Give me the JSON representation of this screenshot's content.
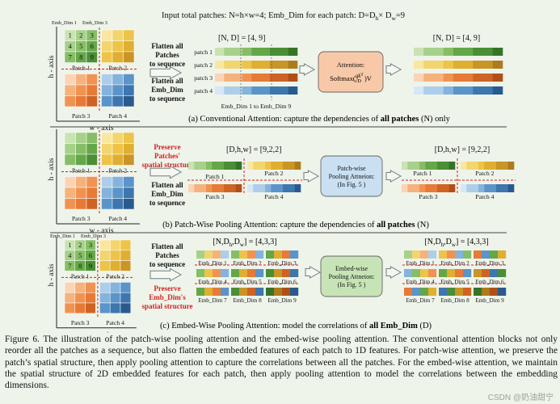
{
  "header": {
    "input_text": "Input total patches: N=h×w=4;   Emb_Dim for each patch: D=D",
    "h_sub": "h",
    "times": "× D",
    "w_sub": "w",
    "eq": "=9"
  },
  "labels": {
    "emb_dim_1": "Emb_Dim 1",
    "emb_dim_3": "Emb_Dim 3",
    "h_axis": "h - axis",
    "w_axis": "w - axis",
    "patch_1": "Patch 1",
    "patch_2": "Patch 2",
    "patch_3": "Patch 3",
    "patch_4": "Patch 4",
    "patch_grid_numbers": [
      "1",
      "2",
      "3",
      "4",
      "5",
      "6",
      "7",
      "8",
      "9"
    ]
  },
  "panel_a": {
    "flatten_patches": [
      "Flatten all",
      "Patches",
      "to sequence"
    ],
    "flatten_emb": [
      "Flatten all",
      "Emb_Dim",
      "to sequence"
    ],
    "shape_in": "[N, D] = [4, 9]",
    "shape_out": "[N, D] = [4, 9]",
    "row_labels": [
      "patch 1",
      "patch 2",
      "patch 3",
      "patch 4"
    ],
    "emb_range": "Emb_Dim 1  to  Emb_Dim 9",
    "attention_title": "Attention:",
    "attention_formula": "Softmax(",
    "attention_num": "qk",
    "attention_sup": "T",
    "attention_den": "√D",
    "attention_tail": ")V",
    "caption_prefix": "(a) Conventional Attention: capture the dependencies of ",
    "caption_bold": "all patches",
    "caption_suffix": " (N) only"
  },
  "panel_b": {
    "preserve": [
      "Preserve",
      "Patches'",
      "spatial structure"
    ],
    "flatten_emb": [
      "Flatten all",
      "Emb_Dim",
      "to sequence"
    ],
    "shape_in": "[D,h,w] = [9,2,2]",
    "shape_out": "[D,h,w] = [9,2,2]",
    "block": [
      "Patch-wise",
      "Pooling Attneion:",
      "(In Fig. 5 )"
    ],
    "caption_prefix": "(b) Patch-Wise Pooling Attention: capture the dependencies of ",
    "caption_bold": "all patches",
    "caption_suffix": " (N)"
  },
  "panel_c": {
    "flatten_patches": [
      "Flatten all",
      "Patches",
      "to sequence"
    ],
    "preserve": [
      "Preserve",
      "Emb_Dim's",
      "spatial structure"
    ],
    "shape_in": "[N,D",
    "shape_in_mid": ",D",
    "shape_in_tail": "] = [4,3,3]",
    "shape_out": "[N,D",
    "shape_out_mid": ",D",
    "shape_out_tail": "] = [4,3,3]",
    "sub_h": "h",
    "sub_w": "w",
    "block": [
      "Embed-wise",
      "Pooling Attneion:",
      "(In Fig. 5 )"
    ],
    "emb_labels": [
      "Emb_Dim 1",
      "Emb_Dim 2",
      "Emb_Dim 3",
      "Emb_Dim 4",
      "Emb_Dim 5",
      "Emb_Dim 6",
      "Emb_Dim 7",
      "Emb_Dim 8",
      "Emb_Dim 9"
    ],
    "caption_prefix": "(c) Embed-Wise Pooling Attention: model the correlations of ",
    "caption_bold": "all Emb_Dim",
    "caption_suffix": " (D)"
  },
  "colors": {
    "green": [
      "#c9e3b3",
      "#a7d18a",
      "#86be66",
      "#64a748",
      "#4a8e36",
      "#357427"
    ],
    "yellow": [
      "#f9e7a1",
      "#f2d56e",
      "#edc448",
      "#e0ae30",
      "#c89526",
      "#ac7c1c"
    ],
    "orange": [
      "#fbd4b5",
      "#f6b27d",
      "#f09352",
      "#e67a36",
      "#cf6324",
      "#b05019"
    ],
    "blue": [
      "#d6e7f5",
      "#aecde9",
      "#84b3dc",
      "#5a94c9",
      "#3e76ae",
      "#2a5a8d"
    ],
    "attention_box": "#f8c9a8",
    "pooling_box": "#c9dff2",
    "embed_box": "#c6e4b6",
    "red_text": "#d42020"
  },
  "figure_caption": "Figure 6. The illustration of the patch-wise pooling attention and the embed-wise pooling attention. The conventional attention blocks not only reorder all the patches as a sequence, but also flatten the embedded features of each patch to 1D features. For patch-wise attention, we preserve the patch’s spatial structure, then apply pooling attention to capture the correlations between all the patches. For the embed-wise attention, we maintain the spatial structure of 2D embedded features for each patch, then apply pooling attention to model the correlations between the embedding dimensions.",
  "watermark": "CSDN @奶油甜宁"
}
